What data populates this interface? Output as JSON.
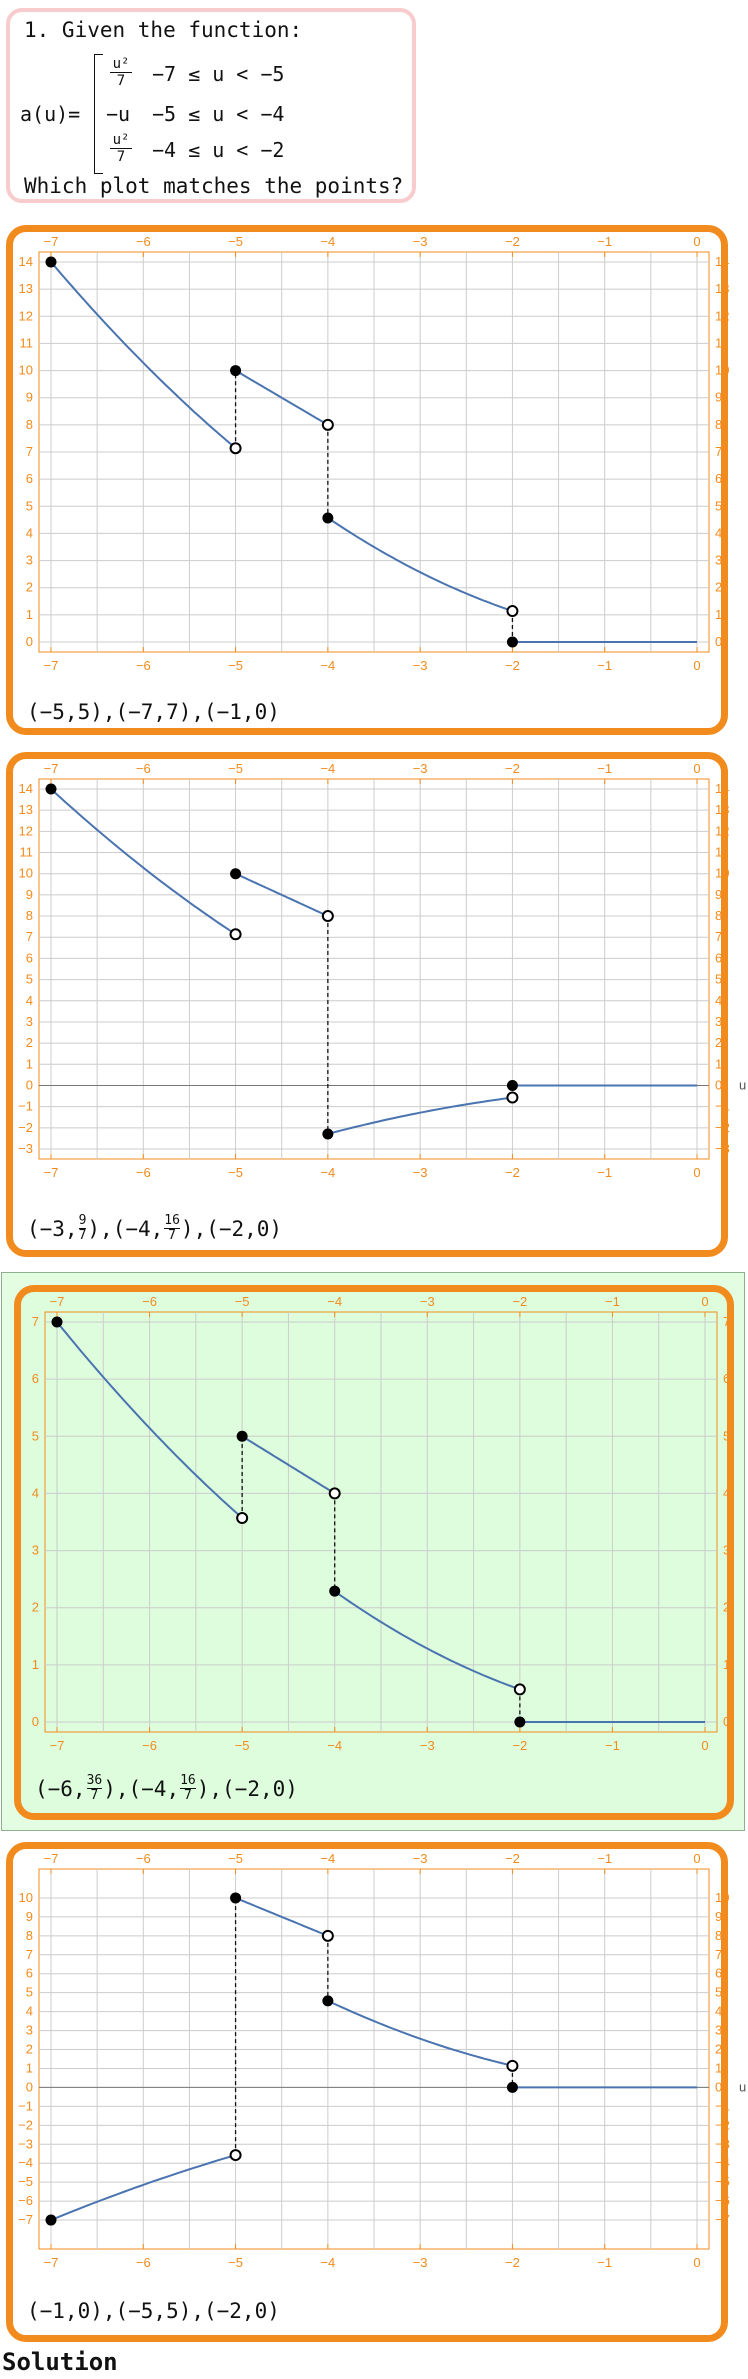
{
  "question": {
    "line1": "1. Given the function:",
    "func_label": "a(u)=",
    "pieces": [
      {
        "expr_num": "u²",
        "expr_den": "7",
        "expr": "",
        "condition": "−7 ≤ u < −5"
      },
      {
        "expr_num": "",
        "expr_den": "",
        "expr": "−u",
        "condition": "−5 ≤ u < −4"
      },
      {
        "expr_num": "u²",
        "expr_den": "7",
        "expr": "",
        "condition": "−4 ≤ u < −2"
      }
    ],
    "line_last": "Which plot matches the points?"
  },
  "colors": {
    "accent": "#f28b1d",
    "curve": "#4a74b0",
    "grid": "#cccccc",
    "question_border": "#f8cccc",
    "correct_bg": "#ddfddd"
  },
  "options": [
    {
      "correct": false,
      "points_parts": [
        "(−5,5),(−7,7),(−1,0)"
      ],
      "points_fracs": []
    },
    {
      "correct": false,
      "points_parts": [
        "(−3,",
        "),(−4,",
        "),(−2,0)"
      ],
      "points_fracs": [
        {
          "n": "9",
          "d": "7"
        },
        {
          "n": "16",
          "d": "7"
        }
      ]
    },
    {
      "correct": true,
      "points_parts": [
        "(−6,",
        "),(−4,",
        "),(−2,0)"
      ],
      "points_fracs": [
        {
          "n": "36",
          "d": "7"
        },
        {
          "n": "16",
          "d": "7"
        }
      ]
    },
    {
      "correct": false,
      "points_parts": [
        "(−1,0),(−5,5),(−2,0)"
      ],
      "points_fracs": []
    }
  ],
  "chart_data": [
    {
      "type": "line",
      "xlabel": "",
      "ylabel": "",
      "xlim": [
        -7,
        0
      ],
      "ylim": [
        0,
        14
      ],
      "x_ticks": [
        -7,
        -6,
        -5,
        -4,
        -3,
        -2,
        -1,
        0
      ],
      "y_ticks": [
        0,
        1,
        2,
        3,
        4,
        5,
        6,
        7,
        8,
        9,
        10,
        11,
        12,
        13,
        14
      ],
      "grid": true,
      "segments": [
        {
          "f": "sq14",
          "from": -7,
          "to": -5
        },
        {
          "f": "neg2",
          "from": -5,
          "to": -4
        },
        {
          "f": "sq14",
          "from": -4,
          "to": -2
        },
        {
          "f": "zero",
          "from": -2,
          "to": 0
        }
      ],
      "filled_points": [
        [
          -7,
          14
        ],
        [
          -5,
          10
        ],
        [
          -4,
          4.57
        ],
        [
          -2,
          0
        ]
      ],
      "open_points": [
        [
          -5,
          7.14
        ],
        [
          -4,
          8
        ],
        [
          -2,
          1.14
        ]
      ],
      "jumps": [
        [
          -5,
          7.14,
          10
        ],
        [
          -4,
          8,
          4.57
        ],
        [
          -2,
          1.14,
          0
        ]
      ]
    },
    {
      "type": "line",
      "xlabel": "u",
      "ylabel": "",
      "xlim": [
        -7,
        0
      ],
      "ylim": [
        -3,
        14
      ],
      "x_ticks": [
        -7,
        -6,
        -5,
        -4,
        -3,
        -2,
        -1,
        0
      ],
      "y_ticks": [
        -3,
        -2,
        -1,
        0,
        1,
        2,
        3,
        4,
        5,
        6,
        7,
        8,
        9,
        10,
        11,
        12,
        13,
        14
      ],
      "grid": true,
      "segments": [
        {
          "f": "sq14",
          "from": -7,
          "to": -5
        },
        {
          "f": "neg2",
          "from": -5,
          "to": -4
        },
        {
          "f": "negsq",
          "from": -4,
          "to": -2
        },
        {
          "f": "zero",
          "from": -2,
          "to": 0
        }
      ],
      "filled_points": [
        [
          -7,
          14
        ],
        [
          -5,
          10
        ],
        [
          -4,
          -2.29
        ],
        [
          -2,
          0
        ]
      ],
      "open_points": [
        [
          -5,
          7.14
        ],
        [
          -4,
          8
        ],
        [
          -2,
          -0.57
        ]
      ],
      "jumps": [
        [
          -4,
          8,
          -2.29
        ]
      ]
    },
    {
      "type": "line",
      "xlabel": "",
      "ylabel": "",
      "xlim": [
        -7,
        0
      ],
      "ylim": [
        0,
        7
      ],
      "x_ticks": [
        -7,
        -6,
        -5,
        -4,
        -3,
        -2,
        -1,
        0
      ],
      "y_ticks": [
        0,
        1,
        2,
        3,
        4,
        5,
        6,
        7
      ],
      "grid": true,
      "segments": [
        {
          "f": "sq7",
          "from": -7,
          "to": -5
        },
        {
          "f": "neg",
          "from": -5,
          "to": -4
        },
        {
          "f": "sq7",
          "from": -4,
          "to": -2
        },
        {
          "f": "zero",
          "from": -2,
          "to": 0
        }
      ],
      "filled_points": [
        [
          -7,
          7
        ],
        [
          -5,
          5
        ],
        [
          -4,
          2.29
        ],
        [
          -2,
          0
        ]
      ],
      "open_points": [
        [
          -5,
          3.57
        ],
        [
          -4,
          4
        ],
        [
          -2,
          0.57
        ]
      ],
      "jumps": [
        [
          -5,
          3.57,
          5
        ],
        [
          -4,
          4,
          2.29
        ],
        [
          -2,
          0.57,
          0
        ]
      ]
    },
    {
      "type": "line",
      "xlabel": "u",
      "ylabel": "",
      "xlim": [
        -7,
        0
      ],
      "ylim": [
        -8,
        11
      ],
      "x_ticks": [
        -7,
        -6,
        -5,
        -4,
        -3,
        -2,
        -1,
        0
      ],
      "y_ticks": [
        -7,
        -6,
        -5,
        -4,
        -3,
        -2,
        -1,
        0,
        1,
        2,
        3,
        4,
        5,
        6,
        7,
        8,
        9,
        10
      ],
      "grid": true,
      "segments": [
        {
          "f": "negsq7",
          "from": -7,
          "to": -5
        },
        {
          "f": "neg2",
          "from": -5,
          "to": -4
        },
        {
          "f": "sq14",
          "from": -4,
          "to": -2
        },
        {
          "f": "zero",
          "from": -2,
          "to": 0
        }
      ],
      "filled_points": [
        [
          -7,
          -7
        ],
        [
          -5,
          10
        ],
        [
          -4,
          4.57
        ],
        [
          -2,
          0
        ]
      ],
      "open_points": [
        [
          -5,
          -3.57
        ],
        [
          -4,
          8
        ],
        [
          -2,
          1.14
        ]
      ],
      "jumps": [
        [
          -5,
          -3.57,
          10
        ],
        [
          -4,
          8,
          4.57
        ],
        [
          -2,
          1.14,
          0
        ]
      ]
    }
  ],
  "solution_label": "Solution"
}
